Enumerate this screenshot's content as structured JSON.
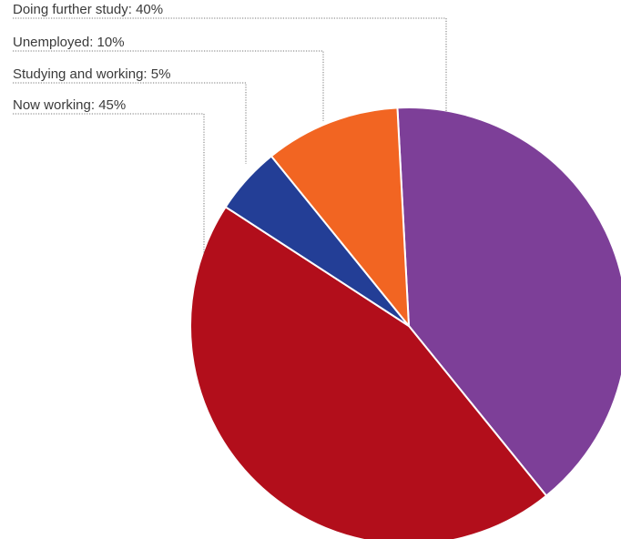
{
  "chart_data": {
    "type": "pie",
    "slices": [
      {
        "label": "Doing further study: 40%",
        "name": "Doing further study",
        "value": 40,
        "color": "#7d3f98"
      },
      {
        "label": "Now working: 45%",
        "name": "Now working",
        "value": 45,
        "color": "#b20e1b"
      },
      {
        "label": "Studying and working: 5%",
        "name": "Studying and working",
        "value": 5,
        "color": "#233e96"
      },
      {
        "label": "Unemployed: 10%",
        "name": "Unemployed",
        "value": 10,
        "color": "#f26522"
      }
    ],
    "legend_order": [
      0,
      3,
      2,
      1
    ],
    "legend": "top-left",
    "start_angle_deg": -3
  }
}
